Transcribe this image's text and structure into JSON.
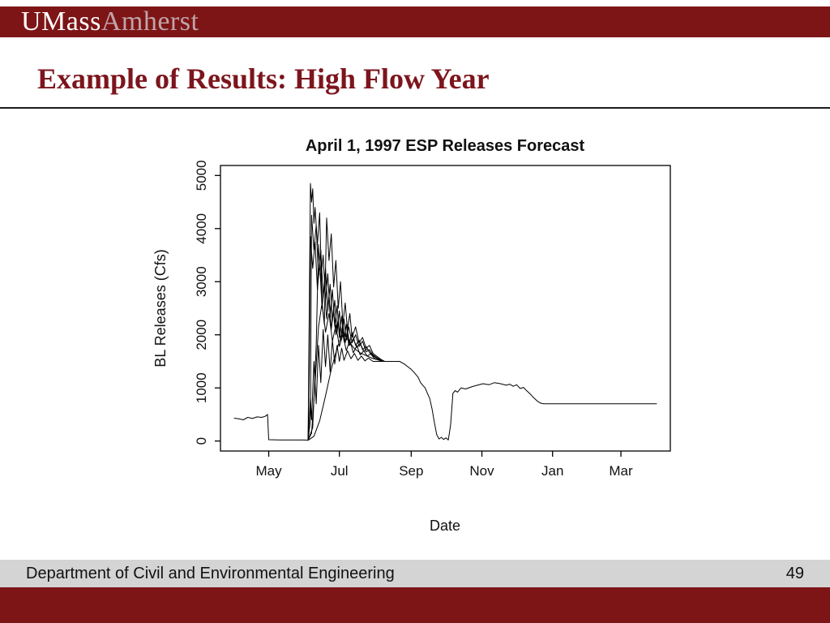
{
  "slide": {
    "logo": {
      "part1": "UMass",
      "part2": "Amherst"
    },
    "title": "Example of Results: High Flow Year",
    "footer": {
      "department": "Department of Civil and Environmental Engineering",
      "page_number": "49"
    }
  },
  "colors": {
    "brand_maroon": "#7d1517",
    "title_maroon": "#7c151d",
    "logo_amherst": "#c0a4a8",
    "footer_gray": "#d4d4d4",
    "line_color": "#000000"
  },
  "chart_data": {
    "type": "line",
    "title": "April 1, 1997 ESP Releases Forecast",
    "xlabel": "Date",
    "ylabel": "BL Releases (Cfs)",
    "x_unit": "days since Apr 1, 1997",
    "xlim": [
      0,
      365
    ],
    "ylim": [
      0,
      5000
    ],
    "grid": false,
    "legend": "none",
    "x_ticks": [
      {
        "day": 30,
        "label": "May"
      },
      {
        "day": 91,
        "label": "Jul"
      },
      {
        "day": 153,
        "label": "Sep"
      },
      {
        "day": 214,
        "label": "Nov"
      },
      {
        "day": 275,
        "label": "Jan"
      },
      {
        "day": 334,
        "label": "Mar"
      }
    ],
    "y_ticks": [
      0,
      1000,
      2000,
      3000,
      4000,
      5000
    ],
    "series": [
      {
        "name": "trace-1",
        "points": [
          [
            0,
            430
          ],
          [
            4,
            420
          ],
          [
            8,
            400
          ],
          [
            12,
            445
          ],
          [
            16,
            425
          ],
          [
            20,
            455
          ],
          [
            24,
            445
          ],
          [
            27,
            465
          ],
          [
            29,
            500
          ],
          [
            30,
            25
          ],
          [
            40,
            20
          ],
          [
            50,
            20
          ],
          [
            60,
            20
          ],
          [
            64,
            15
          ],
          [
            66,
            800
          ],
          [
            67,
            400
          ],
          [
            69,
            1500
          ],
          [
            71,
            700
          ],
          [
            73,
            1800
          ],
          [
            75,
            1100
          ],
          [
            77,
            2100
          ],
          [
            79,
            1400
          ],
          [
            81,
            2000
          ],
          [
            83,
            1300
          ],
          [
            85,
            1900
          ],
          [
            87,
            1450
          ],
          [
            89,
            1800
          ],
          [
            91,
            1500
          ],
          [
            93,
            1750
          ],
          [
            95,
            1520
          ],
          [
            98,
            1700
          ],
          [
            101,
            1550
          ],
          [
            104,
            1650
          ],
          [
            107,
            1520
          ],
          [
            110,
            1600
          ],
          [
            113,
            1510
          ],
          [
            116,
            1560
          ],
          [
            120,
            1500
          ],
          [
            125,
            1500
          ],
          [
            135,
            1500
          ],
          [
            143,
            1500
          ],
          [
            147,
            1450
          ],
          [
            150,
            1400
          ],
          [
            153,
            1350
          ],
          [
            156,
            1280
          ],
          [
            159,
            1200
          ],
          [
            161,
            1100
          ],
          [
            163,
            1050
          ],
          [
            165,
            1000
          ],
          [
            167,
            900
          ],
          [
            169,
            800
          ],
          [
            171,
            600
          ],
          [
            173,
            350
          ],
          [
            175,
            120
          ],
          [
            177,
            40
          ],
          [
            179,
            70
          ],
          [
            181,
            30
          ],
          [
            183,
            60
          ],
          [
            185,
            20
          ],
          [
            187,
            300
          ],
          [
            189,
            900
          ],
          [
            191,
            950
          ],
          [
            193,
            920
          ],
          [
            196,
            1000
          ],
          [
            200,
            980
          ],
          [
            205,
            1020
          ],
          [
            210,
            1050
          ],
          [
            215,
            1080
          ],
          [
            220,
            1060
          ],
          [
            225,
            1100
          ],
          [
            230,
            1080
          ],
          [
            235,
            1050
          ],
          [
            238,
            1070
          ],
          [
            241,
            1030
          ],
          [
            244,
            1060
          ],
          [
            247,
            990
          ],
          [
            250,
            1010
          ],
          [
            252,
            960
          ],
          [
            254,
            920
          ],
          [
            256,
            880
          ],
          [
            258,
            830
          ],
          [
            260,
            790
          ],
          [
            262,
            750
          ],
          [
            264,
            720
          ],
          [
            266,
            705
          ],
          [
            268,
            700
          ],
          [
            285,
            700
          ],
          [
            310,
            700
          ],
          [
            340,
            700
          ],
          [
            365,
            700
          ]
        ]
      },
      {
        "name": "trace-2",
        "points": [
          [
            64,
            15
          ],
          [
            65,
            2500
          ],
          [
            66,
            4850
          ],
          [
            67,
            4500
          ],
          [
            68,
            4750
          ],
          [
            69,
            4100
          ],
          [
            70,
            4400
          ],
          [
            72,
            3700
          ],
          [
            74,
            4300
          ],
          [
            76,
            2600
          ],
          [
            78,
            2200
          ],
          [
            80,
            4200
          ],
          [
            82,
            3400
          ],
          [
            84,
            3900
          ],
          [
            86,
            2900
          ],
          [
            88,
            3400
          ],
          [
            90,
            2500
          ],
          [
            92,
            3000
          ],
          [
            94,
            2200
          ],
          [
            96,
            2600
          ],
          [
            98,
            2100
          ],
          [
            100,
            2400
          ],
          [
            102,
            1950
          ],
          [
            105,
            2150
          ],
          [
            108,
            1850
          ],
          [
            111,
            1950
          ],
          [
            114,
            1750
          ],
          [
            117,
            1800
          ],
          [
            120,
            1650
          ],
          [
            123,
            1600
          ],
          [
            126,
            1550
          ],
          [
            130,
            1500
          ]
        ]
      },
      {
        "name": "trace-3",
        "points": [
          [
            64,
            15
          ],
          [
            66,
            400
          ],
          [
            67,
            4250
          ],
          [
            69,
            3600
          ],
          [
            71,
            4050
          ],
          [
            73,
            3100
          ],
          [
            75,
            3600
          ],
          [
            77,
            2700
          ],
          [
            79,
            3250
          ],
          [
            81,
            2450
          ],
          [
            83,
            2950
          ],
          [
            85,
            2250
          ],
          [
            87,
            2650
          ],
          [
            89,
            2050
          ],
          [
            91,
            2450
          ],
          [
            93,
            1950
          ],
          [
            95,
            2300
          ],
          [
            97,
            1900
          ],
          [
            99,
            2150
          ],
          [
            102,
            1850
          ],
          [
            105,
            2000
          ],
          [
            108,
            1780
          ],
          [
            111,
            1880
          ],
          [
            114,
            1680
          ],
          [
            117,
            1720
          ],
          [
            120,
            1620
          ],
          [
            124,
            1560
          ],
          [
            127,
            1520
          ],
          [
            130,
            1500
          ]
        ]
      },
      {
        "name": "trace-4",
        "points": [
          [
            64,
            15
          ],
          [
            68,
            250
          ],
          [
            71,
            1800
          ],
          [
            73,
            3700
          ],
          [
            75,
            3050
          ],
          [
            77,
            3500
          ],
          [
            79,
            2650
          ],
          [
            81,
            3150
          ],
          [
            83,
            2350
          ],
          [
            85,
            2850
          ],
          [
            87,
            2150
          ],
          [
            89,
            2550
          ],
          [
            91,
            1950
          ],
          [
            93,
            2350
          ],
          [
            95,
            1880
          ],
          [
            97,
            2200
          ],
          [
            99,
            1800
          ],
          [
            102,
            2050
          ],
          [
            105,
            1800
          ],
          [
            108,
            1900
          ],
          [
            111,
            1720
          ],
          [
            114,
            1780
          ],
          [
            117,
            1670
          ],
          [
            120,
            1620
          ],
          [
            124,
            1560
          ],
          [
            127,
            1520
          ],
          [
            130,
            1500
          ]
        ]
      },
      {
        "name": "trace-5",
        "points": [
          [
            64,
            15
          ],
          [
            67,
            150
          ],
          [
            70,
            1100
          ],
          [
            73,
            2150
          ],
          [
            76,
            2600
          ],
          [
            79,
            2050
          ],
          [
            82,
            2400
          ],
          [
            85,
            1880
          ],
          [
            88,
            2180
          ],
          [
            91,
            1780
          ],
          [
            94,
            2000
          ],
          [
            97,
            1700
          ],
          [
            100,
            1900
          ],
          [
            103,
            1660
          ],
          [
            106,
            1800
          ],
          [
            109,
            1620
          ],
          [
            112,
            1700
          ],
          [
            115,
            1600
          ],
          [
            118,
            1640
          ],
          [
            121,
            1560
          ],
          [
            124,
            1530
          ],
          [
            127,
            1510
          ],
          [
            130,
            1500
          ]
        ]
      },
      {
        "name": "trace-6",
        "points": [
          [
            64,
            15
          ],
          [
            69,
            90
          ],
          [
            74,
            380
          ],
          [
            79,
            850
          ],
          [
            84,
            1350
          ],
          [
            89,
            1750
          ],
          [
            94,
            2050
          ],
          [
            99,
            1880
          ],
          [
            104,
            1740
          ],
          [
            109,
            1660
          ],
          [
            114,
            1610
          ],
          [
            119,
            1560
          ],
          [
            124,
            1530
          ],
          [
            130,
            1500
          ]
        ]
      },
      {
        "name": "trace-7",
        "points": [
          [
            64,
            15
          ],
          [
            65,
            1400
          ],
          [
            66,
            3850
          ],
          [
            68,
            3250
          ],
          [
            70,
            3750
          ],
          [
            72,
            2850
          ],
          [
            74,
            3350
          ],
          [
            76,
            2500
          ],
          [
            78,
            2950
          ],
          [
            80,
            2300
          ],
          [
            82,
            2750
          ],
          [
            84,
            2100
          ],
          [
            86,
            2500
          ],
          [
            88,
            2000
          ],
          [
            90,
            2300
          ],
          [
            92,
            1900
          ],
          [
            94,
            2200
          ],
          [
            96,
            1850
          ],
          [
            98,
            2080
          ],
          [
            100,
            1800
          ],
          [
            103,
            1930
          ],
          [
            106,
            1760
          ],
          [
            109,
            1840
          ],
          [
            112,
            1690
          ],
          [
            115,
            1740
          ],
          [
            118,
            1640
          ],
          [
            121,
            1590
          ],
          [
            124,
            1550
          ],
          [
            127,
            1510
          ],
          [
            130,
            1500
          ]
        ]
      }
    ]
  }
}
